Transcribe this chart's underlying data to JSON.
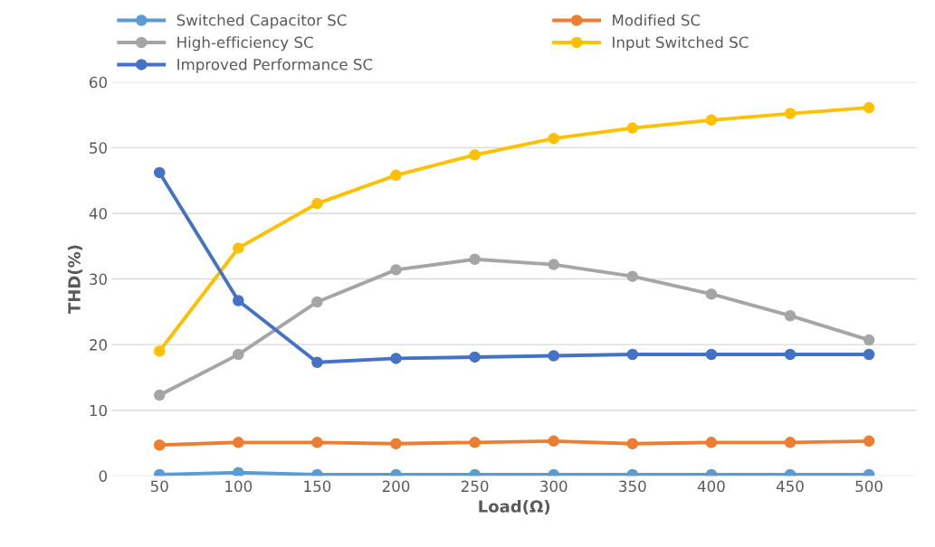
{
  "chart_data": {
    "type": "line",
    "xlabel": "Load(Ω)",
    "ylabel": "THD(%)",
    "categories": [
      "50",
      "100",
      "150",
      "200",
      "250",
      "300",
      "350",
      "400",
      "450",
      "500"
    ],
    "series": [
      {
        "name": "Switched Capacitor SC",
        "color": "#5b9bd5",
        "values": [
          0.2,
          0.5,
          0.2,
          0.2,
          0.2,
          0.2,
          0.2,
          0.2,
          0.2,
          0.2
        ]
      },
      {
        "name": "Modified SC",
        "color": "#ed7d31",
        "values": [
          4.7,
          5.1,
          5.1,
          4.9,
          5.1,
          5.3,
          4.9,
          5.1,
          5.1,
          5.3
        ]
      },
      {
        "name": "High-efficiency SC",
        "color": "#a5a5a5",
        "values": [
          12.3,
          18.5,
          26.5,
          31.4,
          33.0,
          32.2,
          30.4,
          27.7,
          24.4,
          20.7
        ]
      },
      {
        "name": "Input Switched SC",
        "color": "#ffc000",
        "values": [
          19.0,
          34.7,
          41.5,
          45.8,
          48.9,
          51.4,
          53.0,
          54.2,
          55.2,
          56.1
        ]
      },
      {
        "name": "Improved Performance SC",
        "color": "#4472c4",
        "values": [
          46.2,
          26.7,
          17.3,
          17.9,
          18.1,
          18.3,
          18.5,
          18.5,
          18.5,
          18.5
        ]
      }
    ],
    "ylim": [
      0,
      60
    ],
    "yticks": [
      0,
      10,
      20,
      30,
      40,
      50,
      60
    ],
    "grid": "y",
    "legend": "top",
    "marker": "circle",
    "line_style": "solid"
  }
}
